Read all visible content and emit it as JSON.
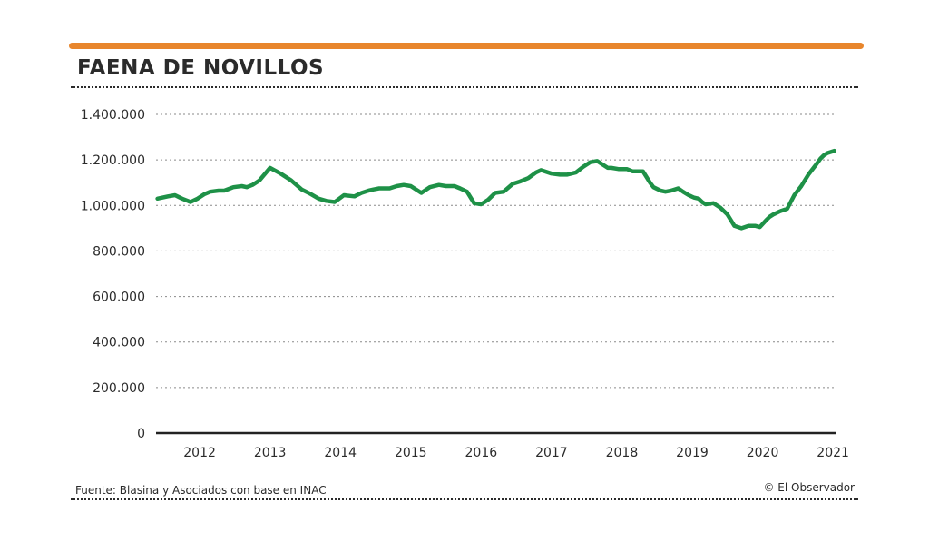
{
  "title": "FAENA DE NOVILLOS",
  "source": "Fuente: Blasina y Asociados con base en INAC",
  "credit": "© El Observador",
  "colors": {
    "accent": "#e8862c",
    "line": "#1e9147",
    "text": "#2b2b2b",
    "grid": "#8a8a8a"
  },
  "chart_data": {
    "type": "line",
    "title": "FAENA DE NOVILLOS",
    "xlabel": "",
    "ylabel": "",
    "ylim": [
      0,
      1400000
    ],
    "yticks": [
      0,
      200000,
      400000,
      600000,
      800000,
      1000000,
      1200000,
      1400000
    ],
    "ytick_labels": [
      "0",
      "200.000",
      "400.000",
      "600.000",
      "800.000",
      "1.000.000",
      "1.200.000",
      "1.400.000"
    ],
    "xticks": [
      2012,
      2013,
      2014,
      2015,
      2016,
      2017,
      2018,
      2019,
      2020,
      2021
    ],
    "xtick_labels": [
      "2012",
      "2013",
      "2014",
      "2015",
      "2016",
      "2017",
      "2018",
      "2019",
      "2020",
      "2021"
    ],
    "xlim": [
      2011.68,
      2021.35
    ],
    "grid": "horizontal dotted",
    "series": [
      {
        "x": [
          2011.7,
          2011.85,
          2011.95,
          2012.05,
          2012.17,
          2012.27,
          2012.37,
          2012.45,
          2012.57,
          2012.65,
          2012.78,
          2012.9,
          2012.97,
          2013.05,
          2013.15,
          2013.3,
          2013.45,
          2013.6,
          2013.75,
          2013.88,
          2013.99,
          2014.1,
          2014.22,
          2014.35,
          2014.5,
          2014.6,
          2014.7,
          2014.77,
          2014.85,
          2015.0,
          2015.1,
          2015.2,
          2015.3,
          2015.45,
          2015.57,
          2015.7,
          2015.8,
          2015.92,
          2016.0,
          2016.1,
          2016.2,
          2016.3,
          2016.4,
          2016.5,
          2016.62,
          2016.75,
          2016.85,
          2016.97,
          2017.08,
          2017.15,
          2017.3,
          2017.42,
          2017.52,
          2017.65,
          2017.75,
          2017.85,
          2017.95,
          2018.1,
          2018.15,
          2018.25,
          2018.37,
          2018.45,
          2018.5,
          2018.6,
          2018.7,
          2018.75,
          2018.85,
          2018.92,
          2019.0,
          2019.1,
          2019.17,
          2019.25,
          2019.32,
          2019.39,
          2019.44,
          2019.49,
          2019.6,
          2019.7,
          2019.8,
          2019.9,
          2020.0,
          2020.1,
          2020.2,
          2020.26,
          2020.35,
          2020.4,
          2020.45,
          2020.55,
          2020.65,
          2020.75,
          2020.85,
          2020.95,
          2021.05,
          2021.12,
          2021.17,
          2021.22,
          2021.27,
          2021.32
        ],
        "values": [
          1030000,
          1040000,
          1045000,
          1030000,
          1015000,
          1030000,
          1050000,
          1060000,
          1065000,
          1065000,
          1080000,
          1085000,
          1080000,
          1090000,
          1110000,
          1165000,
          1140000,
          1110000,
          1070000,
          1050000,
          1030000,
          1020000,
          1015000,
          1045000,
          1040000,
          1055000,
          1065000,
          1070000,
          1075000,
          1075000,
          1085000,
          1090000,
          1085000,
          1055000,
          1080000,
          1090000,
          1085000,
          1085000,
          1075000,
          1060000,
          1010000,
          1005000,
          1025000,
          1055000,
          1060000,
          1095000,
          1105000,
          1120000,
          1145000,
          1155000,
          1140000,
          1135000,
          1135000,
          1145000,
          1170000,
          1190000,
          1195000,
          1165000,
          1165000,
          1160000,
          1160000,
          1150000,
          1150000,
          1150000,
          1100000,
          1080000,
          1065000,
          1060000,
          1065000,
          1075000,
          1060000,
          1045000,
          1035000,
          1030000,
          1015000,
          1005000,
          1010000,
          990000,
          960000,
          910000,
          900000,
          910000,
          910000,
          905000,
          935000,
          950000,
          960000,
          975000,
          985000,
          1045000,
          1085000,
          1135000,
          1175000,
          1205000,
          1220000,
          1230000,
          1235000,
          1240000
        ]
      }
    ]
  }
}
